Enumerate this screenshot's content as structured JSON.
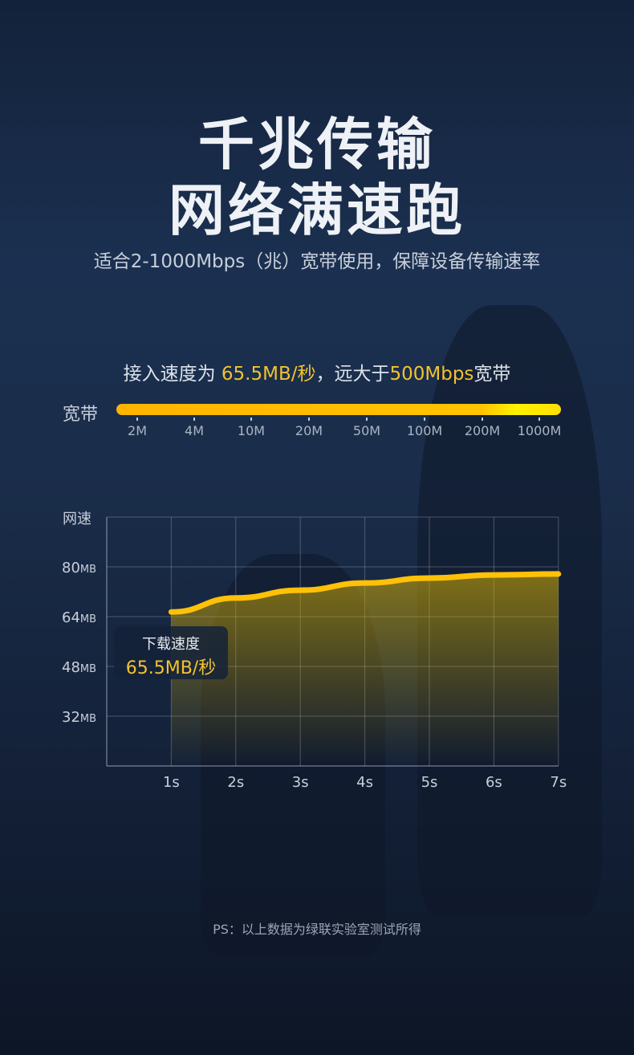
{
  "headline": {
    "line1": "千兆传输",
    "line2": "网络满速跑"
  },
  "subtitle": "适合2-1000Mbps（兆）宽带使用，保障设备传输速率",
  "intro": {
    "part1": "接入速度为 ",
    "speed": "65.5MB/秒",
    "part2": "，远大于",
    "bandwidth": "500Mbps",
    "part3": "宽带"
  },
  "bandwidth_bar": {
    "label": "宽带",
    "ticks": [
      "2M",
      "4M",
      "10M",
      "20M",
      "50M",
      "100M",
      "200M",
      "1000M"
    ]
  },
  "callout": {
    "label": "下载速度",
    "value": "65.5MB/秒"
  },
  "footnote": "PS：以上数据为绿联实验室测试所得",
  "colors": {
    "accent": "#f2c230",
    "line": "#ffc107"
  },
  "chart_data": {
    "type": "area",
    "ylabel": "网速",
    "x": [
      1,
      2,
      3,
      4,
      5,
      6,
      7
    ],
    "xtick_labels": [
      "1s",
      "2s",
      "3s",
      "4s",
      "5s",
      "6s",
      "7s"
    ],
    "ytick_values": [
      32,
      48,
      64,
      80
    ],
    "ytick_labels": [
      {
        "n": "32",
        "u": "MB"
      },
      {
        "n": "48",
        "u": "MB"
      },
      {
        "n": "64",
        "u": "MB"
      },
      {
        "n": "80",
        "u": "MB"
      }
    ],
    "values": [
      65.5,
      70,
      72.5,
      74.8,
      76.4,
      77.4,
      77.7
    ],
    "xlim": [
      0,
      7
    ],
    "ylim": [
      16,
      96
    ],
    "grid": true
  }
}
